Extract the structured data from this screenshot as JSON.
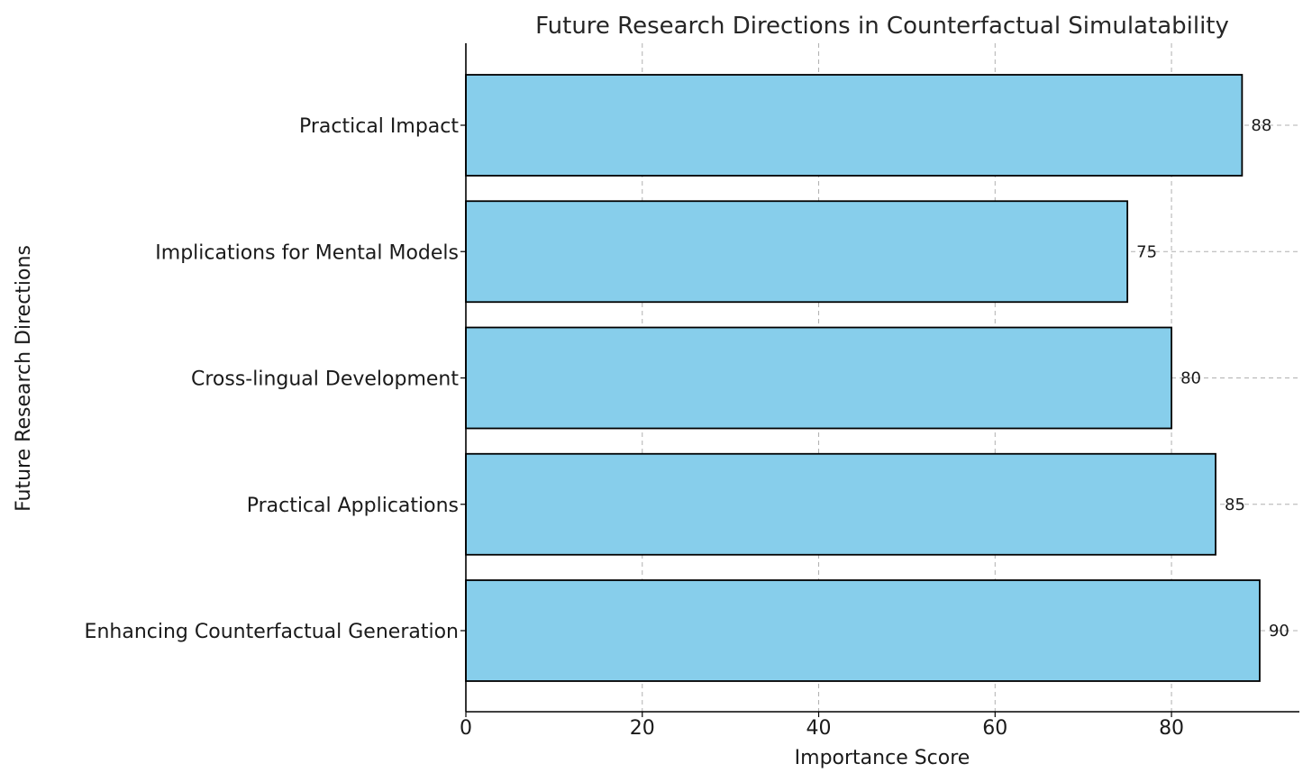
{
  "chart_data": {
    "type": "bar",
    "orientation": "horizontal",
    "title": "Future Research Directions in Counterfactual Simulatability",
    "xlabel": "Importance Score",
    "ylabel": "Future Research Directions",
    "categories": [
      "Enhancing Counterfactual Generation",
      "Practical Applications",
      "Cross-lingual Development",
      "Implications for Mental Models",
      "Practical Impact"
    ],
    "values": [
      90,
      85,
      80,
      75,
      88
    ],
    "xlim": [
      0,
      94.5
    ],
    "xticks": [
      0,
      20,
      40,
      60,
      80
    ],
    "bar_color": "#87CEEB",
    "edge_color": "#000000",
    "grid": true,
    "data_labels": true
  }
}
